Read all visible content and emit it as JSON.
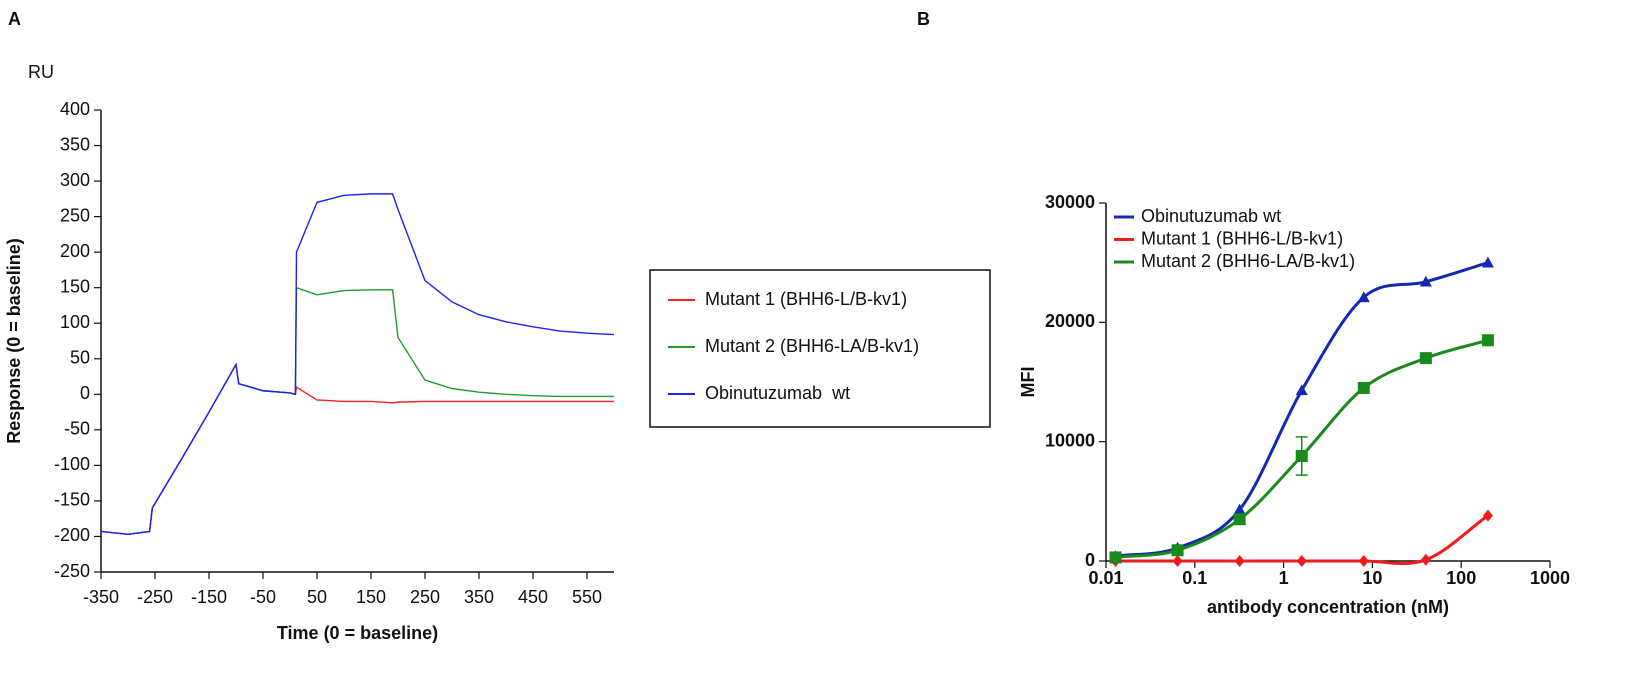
{
  "chart_data": [
    {
      "type": "line",
      "panel": "A",
      "unit_label": "RU",
      "x_label": "Time (0 = baseline)",
      "y_label": "Response (0 = baseline)",
      "xlim": [
        -350,
        600
      ],
      "xticks": [
        -350,
        -250,
        -150,
        -50,
        50,
        150,
        250,
        350,
        450,
        550
      ],
      "ylim": [
        -250,
        400
      ],
      "yticks": [
        -250,
        -200,
        -150,
        -100,
        -50,
        0,
        50,
        100,
        150,
        200,
        250,
        300,
        350,
        400
      ],
      "legend": "right",
      "x": [
        -350,
        -300,
        -260,
        -255,
        -200,
        -150,
        -100,
        -95,
        -50,
        0,
        10,
        12,
        50,
        100,
        150,
        190,
        200,
        250,
        300,
        350,
        400,
        450,
        500,
        550,
        600
      ],
      "series": [
        {
          "name": "Mutant 1 (BHH6-L/B-kv1)",
          "color": "#ff2020",
          "values": [
            -193,
            -197,
            -193,
            -160,
            -90,
            -25,
            42,
            15,
            5,
            2,
            0,
            10,
            -8,
            -10,
            -10,
            -12,
            -11,
            -10,
            -10,
            -10,
            -10,
            -10,
            -10,
            -10,
            -10
          ]
        },
        {
          "name": "Mutant 2 (BHH6-LA/B-kv1)",
          "color": "#1e9a2e",
          "values": [
            -193,
            -197,
            -193,
            -160,
            -90,
            -25,
            42,
            15,
            5,
            2,
            0,
            150,
            140,
            146,
            147,
            147,
            80,
            20,
            8,
            3,
            0,
            -2,
            -3,
            -3,
            -3
          ]
        },
        {
          "name": "Obinutuzumab  wt",
          "color": "#2020ff",
          "values": [
            -193,
            -197,
            -193,
            -160,
            -90,
            -25,
            42,
            15,
            5,
            2,
            0,
            200,
            270,
            280,
            282,
            282,
            260,
            160,
            130,
            112,
            102,
            95,
            89,
            86,
            84
          ]
        }
      ]
    },
    {
      "type": "scatter",
      "panel": "B",
      "x_label": "antibody concentration (nM)",
      "y_label": "MFI",
      "x_scale": "log",
      "xlim": [
        0.01,
        1000
      ],
      "xticks": [
        0.01,
        0.1,
        1,
        10,
        100,
        1000
      ],
      "ylim": [
        0,
        30000
      ],
      "yticks": [
        0,
        10000,
        20000,
        30000
      ],
      "legend": "upper left",
      "x": [
        0.0128,
        0.064,
        0.32,
        1.6,
        8,
        40,
        200
      ],
      "series": [
        {
          "name": "Obinutuzumab wt",
          "color": "#1428b4",
          "marker": "triangle",
          "values": [
            400,
            1100,
            4300,
            14300,
            22100,
            23400,
            25000
          ]
        },
        {
          "name": "Mutant 1 (BHH6-L/B-kv1)",
          "color": "#ee1c1c",
          "marker": "diamond",
          "values": [
            0,
            0,
            0,
            0,
            0,
            100,
            3800
          ]
        },
        {
          "name": "Mutant 2 (BHH6-LA/B-kv1)",
          "color": "#1a8a1e",
          "marker": "square",
          "values": [
            300,
            900,
            3500,
            8800,
            14500,
            17000,
            18500
          ],
          "errors": [
            null,
            null,
            null,
            1600,
            null,
            null,
            null
          ]
        }
      ]
    }
  ]
}
